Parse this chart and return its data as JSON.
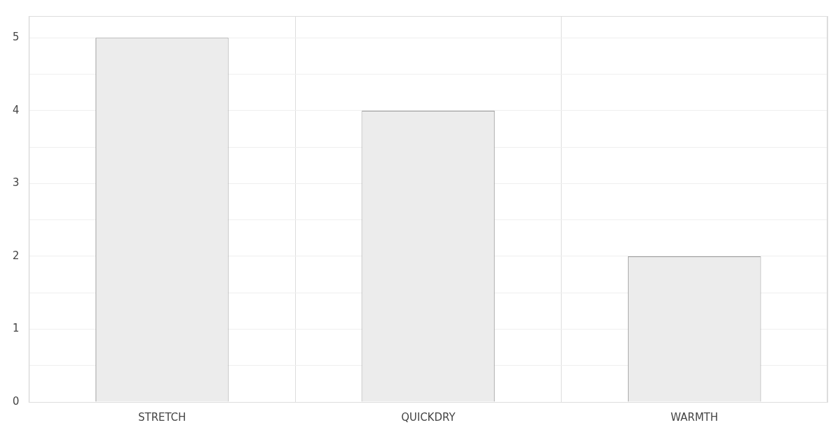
{
  "chart_data": {
    "type": "bar",
    "categories": [
      "STRETCH",
      "QUICKDRY",
      "WARMTH"
    ],
    "values": [
      5,
      4,
      2
    ],
    "color": "#ececec",
    "ylim": [
      0,
      5.3
    ],
    "yticks": [
      0,
      {
        "value": 0.5,
        "label": null
      },
      1,
      {
        "value": 1.5,
        "label": null
      },
      2,
      {
        "value": 2.5,
        "label": null
      },
      3,
      {
        "value": 3.5,
        "label": null
      },
      4,
      {
        "value": 4.5,
        "label": null
      },
      5
    ],
    "grid": true,
    "legend": false
  }
}
